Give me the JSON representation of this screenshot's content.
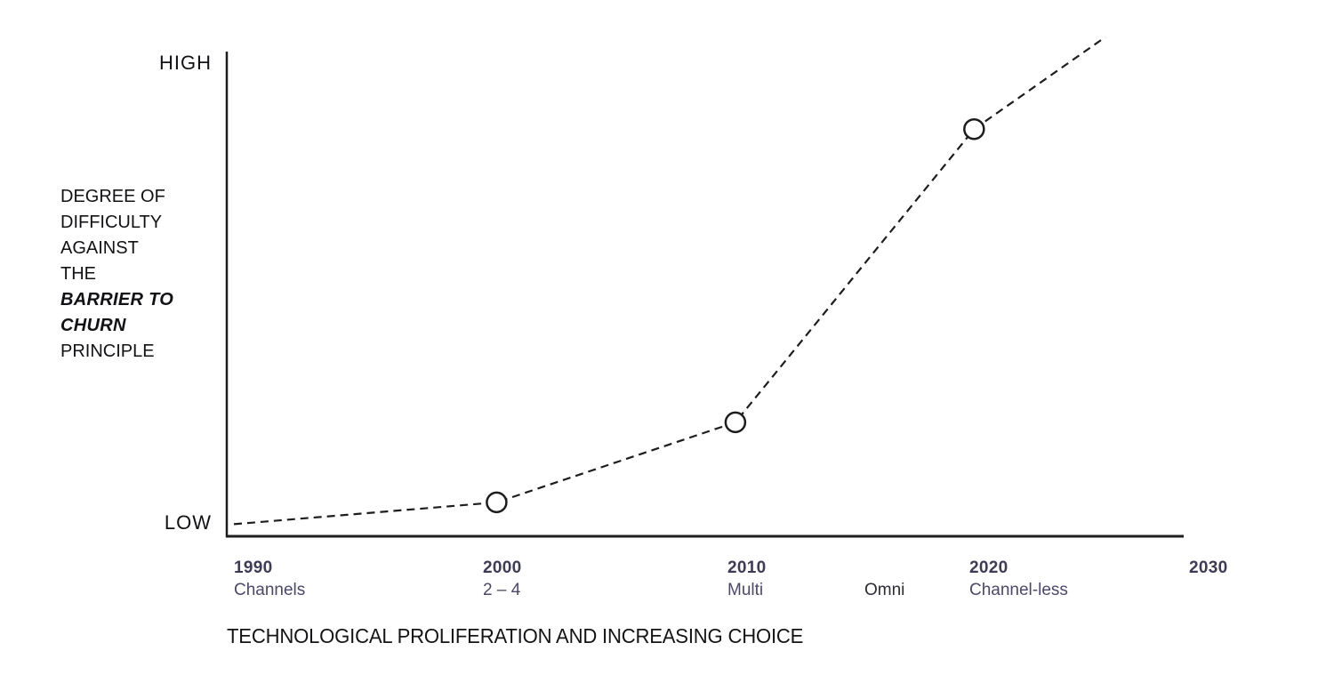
{
  "page": {
    "background": "#ffffff"
  },
  "y_axis": {
    "high_label": "HIGH",
    "low_label": "LOW",
    "title_lines": [
      {
        "text": "DEGREE OF",
        "emphasis": false
      },
      {
        "text": "DIFFICULTY",
        "emphasis": false
      },
      {
        "text": "AGAINST",
        "emphasis": false
      },
      {
        "text": "THE",
        "emphasis": false
      },
      {
        "text": "BARRIER TO",
        "emphasis": true
      },
      {
        "text": "CHURN",
        "emphasis": true
      },
      {
        "text": "PRINCIPLE",
        "emphasis": false
      }
    ]
  },
  "x_axis": {
    "title": "TECHNOLOGICAL PROLIFERATION AND INCREASING CHOICE",
    "ticks": [
      {
        "year": "1990",
        "sub": "Channels"
      },
      {
        "year": "2000",
        "sub": "2 – 4"
      },
      {
        "year": "2010",
        "sub": "Multi"
      },
      {
        "year": "",
        "sub": "Omni"
      },
      {
        "year": "2020",
        "sub": "Channel-less"
      },
      {
        "year": "2030",
        "sub": ""
      }
    ]
  },
  "colors": {
    "axis": "#1d1d1f",
    "line": "#1d1d1f",
    "marker_stroke": "#1d1d1f",
    "marker_fill": "#ffffff",
    "year_label": "#3e3b55",
    "sub_label": "#4b4868",
    "omni_label": "#2b2b33"
  },
  "chart_data": {
    "type": "line",
    "line_style": "dashed",
    "title": "",
    "xlabel": "TECHNOLOGICAL PROLIFERATION AND INCREASING CHOICE",
    "ylabel": "DEGREE OF DIFFICULTY AGAINST THE BARRIER TO CHURN PRINCIPLE",
    "y_range_labels": [
      "LOW",
      "HIGH"
    ],
    "x_tick_years": [
      1990,
      2000,
      2010,
      2020,
      2030
    ],
    "x": [
      1990,
      2001,
      2011,
      2021,
      2026.5
    ],
    "y_difficulty_pct": [
      2.5,
      7,
      23.5,
      84,
      103
    ],
    "markers_at_x": [
      2001,
      2011,
      2021
    ],
    "xlim": [
      1990,
      2030
    ],
    "ylim_pct": [
      0,
      100
    ],
    "grid": false,
    "legend": false
  }
}
